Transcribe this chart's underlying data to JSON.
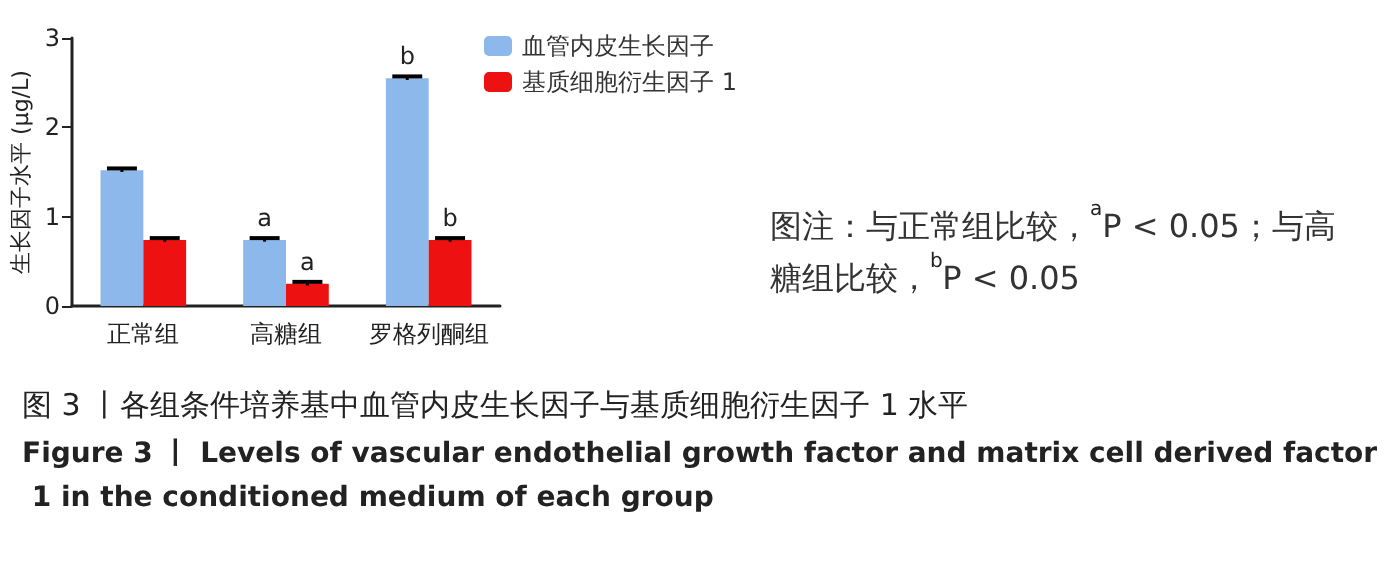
{
  "chart_data": {
    "type": "bar",
    "title": "图 3 丨各组条件培养基中血管内皮生长因子与基质细胞衍生因子 1 水平",
    "subtitle": "Figure 3 丨 Levels of vascular endothelial growth factor and matrix cell derived factor 1 in the conditioned medium of each group",
    "ylabel": "生长因子水平 (μg/L)",
    "categories": [
      "正常组",
      "高糖组",
      "罗格列酮组"
    ],
    "series": [
      {
        "name": "血管内皮生长因子",
        "color": "#8db8ec",
        "values": [
          1.52,
          0.74,
          2.55
        ],
        "errors": [
          0.02,
          0.02,
          0.02
        ]
      },
      {
        "name": "基质细胞衍生因子 1",
        "color": "#ee1111",
        "values": [
          0.74,
          0.25,
          0.74
        ],
        "errors": [
          0.02,
          0.02,
          0.02
        ]
      }
    ],
    "ylim": [
      0,
      3
    ],
    "yticks": [
      0,
      1,
      2,
      3
    ],
    "grid": false,
    "legend": "right",
    "annotations": [
      {
        "text": "a",
        "x": "高糖组",
        "y": 0.76
      },
      {
        "text": "a",
        "x": "高糖组",
        "y": 0.27
      },
      {
        "text": "b",
        "x": "罗格列酮组",
        "y": 2.57
      },
      {
        "text": "b",
        "x": "罗格列酮组",
        "y": 0.76
      },
      "图注：与正常组比较，$^{a}$P < 0.05；与高糖组比较，$^{b}$P < 0.05"
    ]
  }
}
